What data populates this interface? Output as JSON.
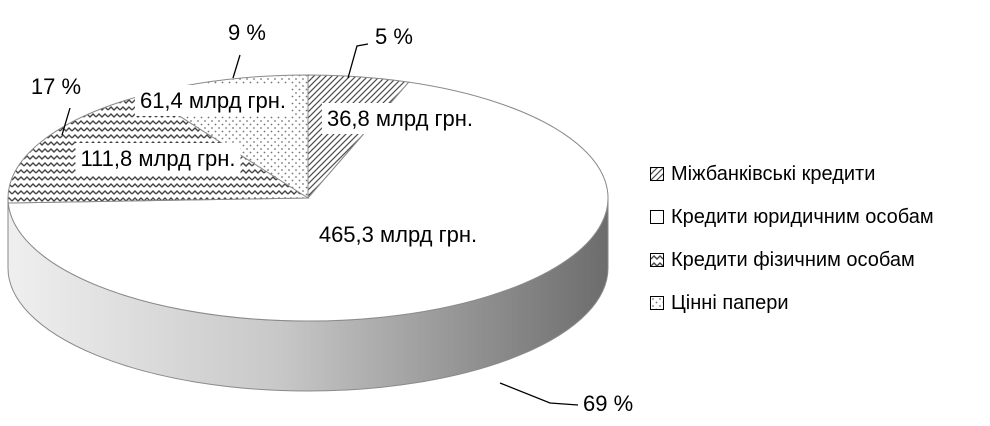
{
  "chart_data": {
    "type": "pie",
    "title": "",
    "slices": [
      {
        "name": "Міжбанківські кредити",
        "value": 36.8,
        "amount_label": "36,8 млрд грн.",
        "percent_label": "5 %",
        "pattern": "hatch"
      },
      {
        "name": "Кредити юридичним особам",
        "value": 465.3,
        "amount_label": "465,3 млрд грн.",
        "percent_label": "69 %",
        "pattern": "plain"
      },
      {
        "name": "Кредити фізичним особам",
        "value": 111.8,
        "amount_label": "111,8 млрд грн.",
        "percent_label": "17 %",
        "pattern": "zigzag"
      },
      {
        "name": "Цінні папери",
        "value": 61.4,
        "amount_label": "61,4 млрд грн.",
        "percent_label": "9 %",
        "pattern": "dots"
      }
    ],
    "legend_position": "right",
    "style": "3d"
  },
  "colors": {
    "outline": "#8a8a8a",
    "side_light": "#ebebeb",
    "side_dark": "#6e6e6e"
  }
}
